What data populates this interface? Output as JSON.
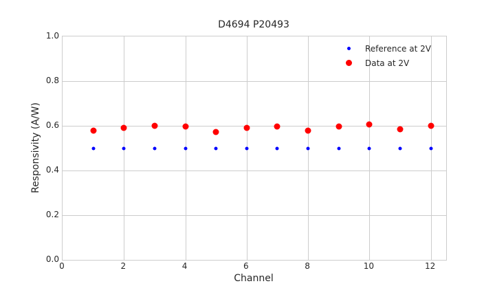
{
  "chart_data": {
    "type": "scatter",
    "title": "D4694 P20493",
    "xlabel": "Channel",
    "ylabel": "Responsivity (A/W)",
    "xlim": [
      0,
      12.5
    ],
    "ylim": [
      0,
      1.0
    ],
    "x_ticks": [
      0,
      2,
      4,
      6,
      8,
      10,
      12
    ],
    "y_ticks": [
      0.0,
      0.2,
      0.4,
      0.6,
      0.8,
      1.0
    ],
    "y_tick_labels": [
      "0.0",
      "0.2",
      "0.4",
      "0.6",
      "0.8",
      "1.0"
    ],
    "grid": true,
    "legend_position": "upper right",
    "legend_frame": false,
    "x": [
      1,
      2,
      3,
      4,
      5,
      6,
      7,
      8,
      9,
      10,
      11,
      12
    ],
    "series": [
      {
        "name": "Reference at 2V",
        "color": "#0000ff",
        "marker_size": 5,
        "values": [
          0.5,
          0.5,
          0.5,
          0.5,
          0.5,
          0.5,
          0.5,
          0.5,
          0.5,
          0.5,
          0.5,
          0.5
        ]
      },
      {
        "name": "Data at 2V",
        "color": "#ff0000",
        "marker_size": 9,
        "values": [
          0.578,
          0.592,
          0.6,
          0.596,
          0.572,
          0.59,
          0.597,
          0.578,
          0.597,
          0.607,
          0.584,
          0.601
        ]
      }
    ],
    "colors": {
      "grid": "#cccccc",
      "spine": "#cccccc",
      "text": "#262626",
      "background": "#ffffff"
    }
  }
}
